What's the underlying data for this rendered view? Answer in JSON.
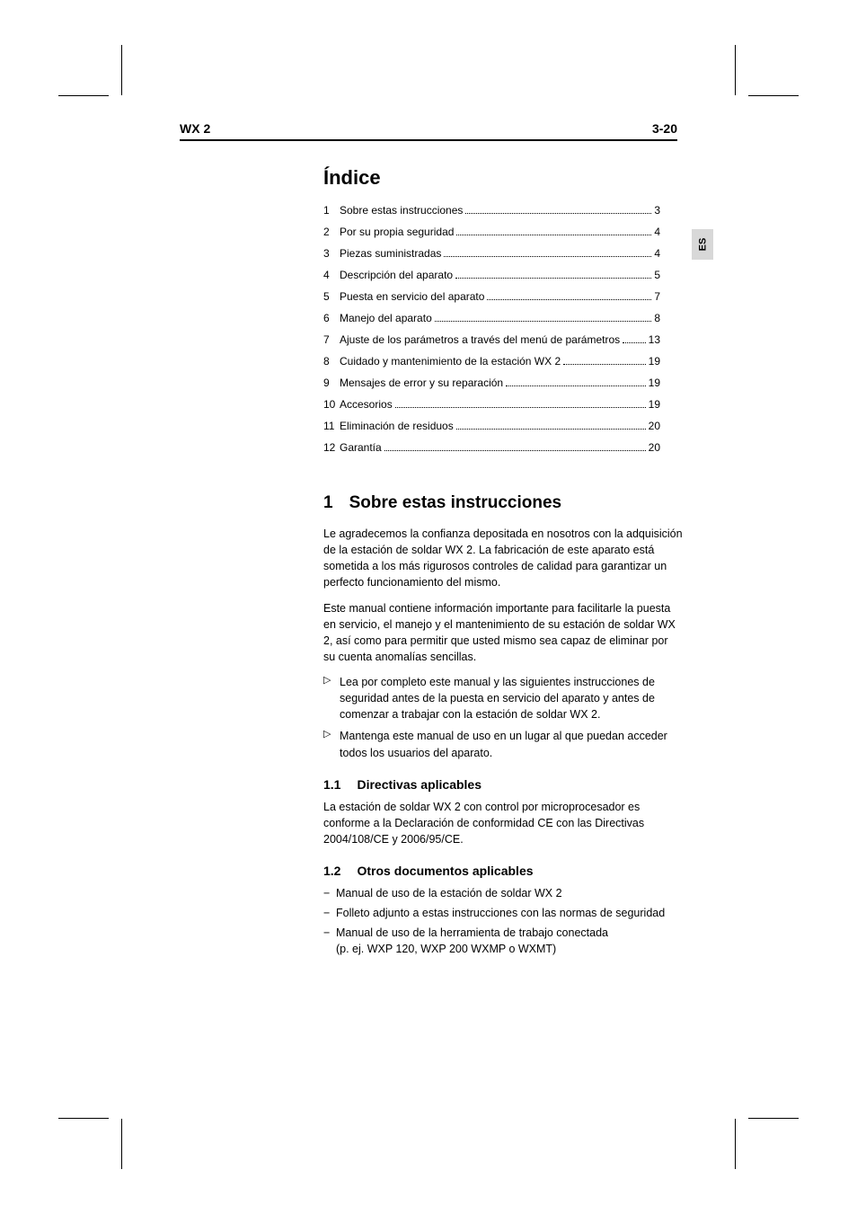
{
  "header": {
    "left": "WX 2",
    "right": "3-20"
  },
  "side_tab": "ES",
  "toc": {
    "title": "Índice",
    "items": [
      {
        "n": "1",
        "t": "Sobre estas instrucciones",
        "p": "3"
      },
      {
        "n": "2",
        "t": "Por su propia seguridad",
        "p": "4"
      },
      {
        "n": "3",
        "t": "Piezas suministradas",
        "p": "4"
      },
      {
        "n": "4",
        "t": "Descripción del aparato",
        "p": "5"
      },
      {
        "n": "5",
        "t": "Puesta en servicio del aparato",
        "p": "7"
      },
      {
        "n": "6",
        "t": "Manejo del aparato",
        "p": "8"
      },
      {
        "n": "7",
        "t": "Ajuste de los parámetros a través del menú de parámetros",
        "p": "13"
      },
      {
        "n": "8",
        "t": "Cuidado y mantenimiento de la estación WX 2",
        "p": "19"
      },
      {
        "n": "9",
        "t": "Mensajes de error y su reparación",
        "p": "19"
      },
      {
        "n": "10",
        "t": "Accesorios",
        "p": "19"
      },
      {
        "n": "11",
        "t": "Eliminación de residuos",
        "p": "20"
      },
      {
        "n": "12",
        "t": "Garantía",
        "p": "20"
      }
    ]
  },
  "section1": {
    "num": "1",
    "title": "Sobre estas instrucciones",
    "p1": "Le agradecemos la confianza depositada en nosotros con la adquisición de la estación de soldar WX 2. La fabricación de este aparato está sometida a los más rigurosos controles de calidad para garantizar un perfecto funcionamiento del mismo.",
    "p2": "Este manual contiene información importante para facilitarle la puesta en servicio, el manejo y el mantenimiento de su estación de soldar WX 2, así como para permitir que usted mismo sea capaz de eliminar por su cuenta anomalías sencillas.",
    "bullets": [
      "Lea por completo este manual y las siguientes instrucciones de seguridad antes de la puesta en servicio del aparato y antes de comenzar a trabajar con la estación de soldar WX 2.",
      "Mantenga este manual de uso en un lugar al que puedan acceder todos los usuarios del aparato."
    ],
    "sub1": {
      "num": "1.1",
      "title": "Directivas aplicables",
      "p": "La estación de soldar WX 2 con control por microprocesador es conforme a la Declaración de conformidad CE con las Directivas 2004/108/CE y 2006/95/CE."
    },
    "sub2": {
      "num": "1.2",
      "title": "Otros documentos aplicables",
      "items": [
        {
          "t": "Manual de uso de la estación de soldar WX 2"
        },
        {
          "t": "Folleto adjunto a estas instrucciones con las normas de seguridad"
        },
        {
          "t": "Manual de uso de la herramienta de trabajo conectada",
          "sub": "(p. ej. WXP 120, WXP 200 WXMP o WXMT)"
        }
      ]
    }
  }
}
